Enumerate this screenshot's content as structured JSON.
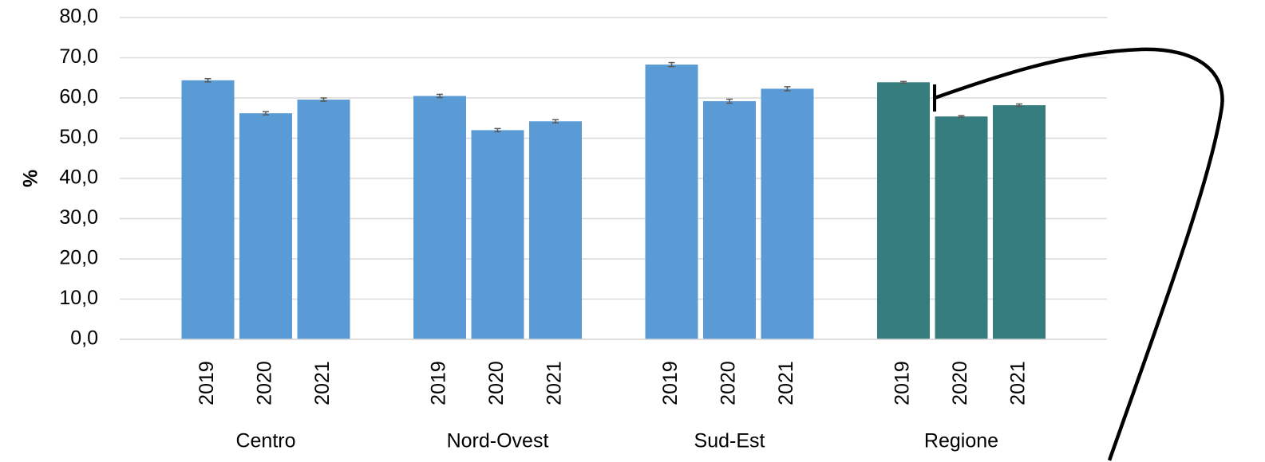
{
  "chart_data": {
    "type": "bar",
    "y_label": "%",
    "ylim": [
      0,
      80
    ],
    "yticks": [
      {
        "value": 0,
        "label": "0,0"
      },
      {
        "value": 10,
        "label": "10,0"
      },
      {
        "value": 20,
        "label": "20,0"
      },
      {
        "value": 30,
        "label": "30,0"
      },
      {
        "value": 40,
        "label": "40,0"
      },
      {
        "value": 50,
        "label": "50,0"
      },
      {
        "value": 60,
        "label": "60,0"
      },
      {
        "value": 70,
        "label": "70,0"
      },
      {
        "value": 80,
        "label": "80,0"
      }
    ],
    "grid": true,
    "groups": [
      {
        "name": "Centro",
        "color": "#5b9bd5",
        "years": [
          "2019",
          "2020",
          "2021"
        ],
        "values": [
          64.4,
          56.2,
          59.6
        ],
        "errors": [
          0.4,
          0.4,
          0.4
        ]
      },
      {
        "name": "Nord-Ovest",
        "color": "#5b9bd5",
        "years": [
          "2019",
          "2020",
          "2021"
        ],
        "values": [
          60.5,
          52.0,
          54.2
        ],
        "errors": [
          0.4,
          0.4,
          0.4
        ]
      },
      {
        "name": "Sud-Est",
        "color": "#5b9bd5",
        "years": [
          "2019",
          "2020",
          "2021"
        ],
        "values": [
          68.3,
          59.2,
          62.3
        ],
        "errors": [
          0.5,
          0.5,
          0.5
        ]
      },
      {
        "name": "Regione",
        "color": "#367d7f",
        "years": [
          "2019",
          "2020",
          "2021"
        ],
        "values": [
          63.9,
          55.4,
          58.2
        ],
        "errors": [
          0.2,
          0.2,
          0.3
        ]
      }
    ]
  }
}
